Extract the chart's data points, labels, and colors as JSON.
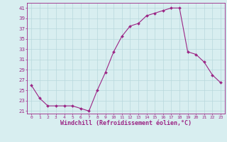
{
  "x": [
    0,
    1,
    2,
    3,
    4,
    5,
    6,
    7,
    8,
    9,
    10,
    11,
    12,
    13,
    14,
    15,
    16,
    17,
    18,
    19,
    20,
    21,
    22,
    23
  ],
  "y": [
    26,
    23.5,
    22,
    22,
    22,
    22,
    21.5,
    21,
    25,
    28.5,
    32.5,
    35.5,
    37.5,
    38,
    39.5,
    40,
    40.5,
    41,
    41,
    32.5,
    32,
    30.5,
    28,
    26.5
  ],
  "line_color": "#9B2585",
  "marker": "D",
  "marker_size": 2.0,
  "bg_color": "#d8eef0",
  "grid_color": "#b8d8dc",
  "xlabel": "Windchill (Refroidissement éolien,°C)",
  "xlabel_fontsize": 6.0,
  "yticks": [
    21,
    23,
    25,
    27,
    29,
    31,
    33,
    35,
    37,
    39,
    41
  ],
  "xticks": [
    0,
    1,
    2,
    3,
    4,
    5,
    6,
    7,
    8,
    9,
    10,
    11,
    12,
    13,
    14,
    15,
    16,
    17,
    18,
    19,
    20,
    21,
    22,
    23
  ],
  "ylim": [
    20.5,
    42.0
  ],
  "xlim": [
    -0.5,
    23.5
  ]
}
